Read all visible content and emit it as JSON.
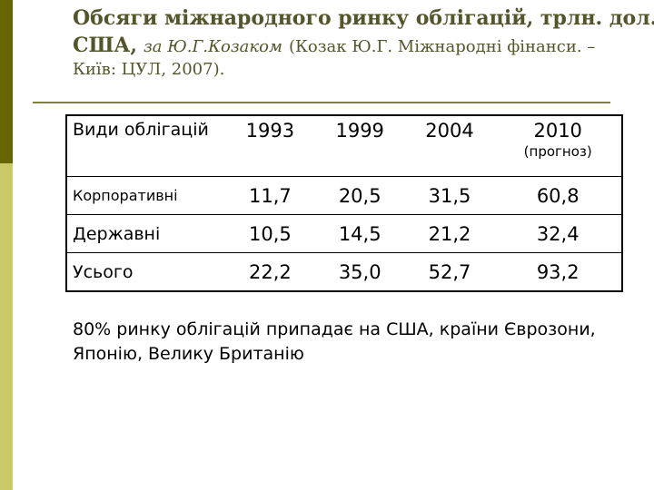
{
  "title": {
    "line1": "Обсяги міжнародного ринку облігацій, трлн. дол.",
    "line2_bold": "США,",
    "line2_italic": "за Ю.Г.Козаком",
    "line2_plain": "(Козак Ю.Г. Міжнародні фінанси. –",
    "line3": "Київ: ЦУЛ, 2007)."
  },
  "table": {
    "header": {
      "label": "Види облігацій",
      "years": [
        "1993",
        "1999",
        "2004",
        "2010"
      ],
      "last_note": "(прогноз)"
    },
    "rows": [
      {
        "label": "Корпоративні",
        "values": [
          "11,7",
          "20,5",
          "31,5",
          "60,8"
        ]
      },
      {
        "label": "Державні",
        "values": [
          "10,5",
          "14,5",
          "21,2",
          "32,4"
        ]
      },
      {
        "label": "Усього",
        "values": [
          "22,2",
          "35,0",
          "52,7",
          "93,2"
        ]
      }
    ]
  },
  "note": "80% ринку облігацій припадає на США, країни Єврозони, Японію, Велику Британію",
  "colors": {
    "bar_dark": "#666600",
    "bar_light": "#c9c96a",
    "title_text": "#55552b",
    "rule": "#808040"
  }
}
